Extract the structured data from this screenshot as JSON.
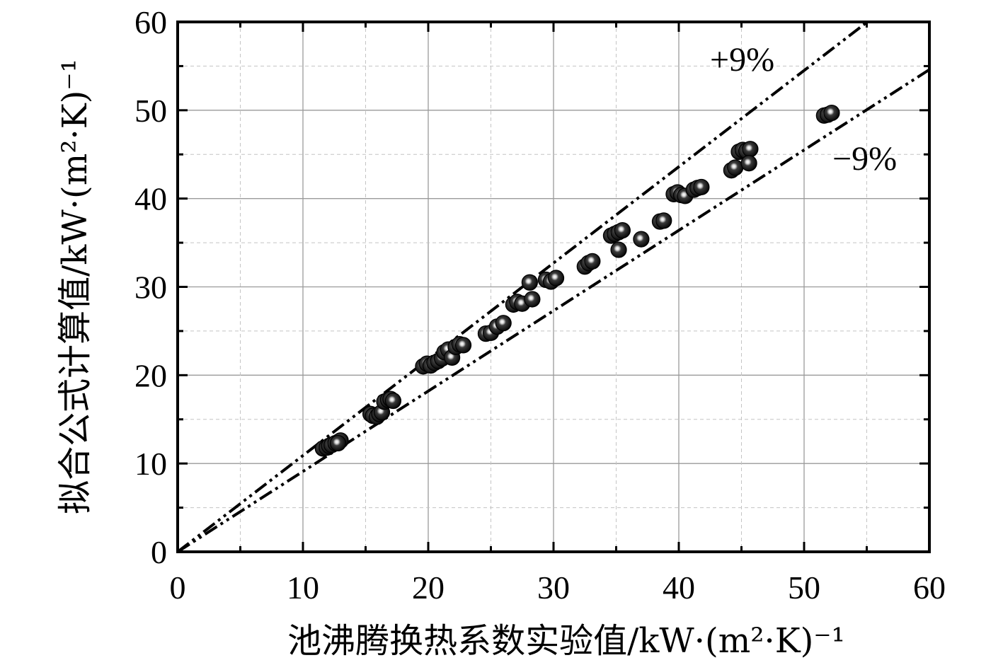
{
  "chart_data": {
    "type": "scatter",
    "xlabel": "池沸腾换热系数实验值/kW·(m²·K)⁻¹",
    "ylabel": "拟合公式计算值/kW·(m²·K)⁻¹",
    "xlim": [
      0,
      60
    ],
    "ylim": [
      0,
      60
    ],
    "xticks": [
      "0",
      "10",
      "20",
      "30",
      "40",
      "50",
      "60"
    ],
    "yticks": [
      "0",
      "10",
      "20",
      "30",
      "40",
      "50",
      "60"
    ],
    "grid": true,
    "reference_lines": [
      {
        "label": "+9%",
        "slope": 1.09,
        "style": "dash-dot"
      },
      {
        "label": "−9%",
        "slope": 0.91,
        "style": "dash-dot"
      }
    ],
    "series": [
      {
        "points": [
          [
            11.6,
            11.7
          ],
          [
            11.9,
            11.8
          ],
          [
            12.1,
            12.0
          ],
          [
            12.3,
            12.1
          ],
          [
            12.6,
            12.3
          ],
          [
            12.9,
            12.5
          ],
          [
            13.0,
            12.6
          ],
          [
            12.8,
            12.3
          ],
          [
            15.4,
            15.6
          ],
          [
            15.6,
            15.4
          ],
          [
            15.9,
            15.3
          ],
          [
            16.1,
            15.6
          ],
          [
            16.3,
            15.8
          ],
          [
            16.5,
            17.0
          ],
          [
            16.8,
            17.2
          ],
          [
            17.0,
            17.3
          ],
          [
            17.2,
            17.1
          ],
          [
            19.6,
            21.0
          ],
          [
            19.9,
            21.3
          ],
          [
            20.2,
            21.1
          ],
          [
            20.5,
            21.4
          ],
          [
            20.8,
            21.6
          ],
          [
            21.1,
            21.9
          ],
          [
            21.3,
            22.6
          ],
          [
            21.6,
            22.9
          ],
          [
            21.9,
            22.0
          ],
          [
            22.2,
            23.2
          ],
          [
            22.5,
            23.5
          ],
          [
            22.8,
            23.4
          ],
          [
            24.6,
            24.7
          ],
          [
            25.0,
            24.8
          ],
          [
            25.5,
            25.5
          ],
          [
            26.0,
            25.9
          ],
          [
            26.8,
            28.0
          ],
          [
            27.1,
            28.3
          ],
          [
            27.5,
            28.1
          ],
          [
            28.1,
            30.5
          ],
          [
            28.3,
            28.6
          ],
          [
            29.4,
            30.8
          ],
          [
            29.8,
            30.6
          ],
          [
            30.2,
            31.0
          ],
          [
            32.5,
            32.3
          ],
          [
            32.8,
            32.7
          ],
          [
            33.1,
            32.9
          ],
          [
            34.6,
            35.8
          ],
          [
            34.9,
            36.0
          ],
          [
            35.2,
            36.2
          ],
          [
            35.5,
            36.4
          ],
          [
            35.2,
            34.2
          ],
          [
            37.0,
            35.4
          ],
          [
            38.5,
            37.4
          ],
          [
            38.8,
            37.5
          ],
          [
            39.6,
            40.5
          ],
          [
            39.9,
            40.7
          ],
          [
            40.2,
            40.4
          ],
          [
            40.5,
            40.3
          ],
          [
            41.2,
            41.0
          ],
          [
            41.5,
            41.2
          ],
          [
            41.8,
            41.3
          ],
          [
            44.2,
            43.2
          ],
          [
            44.5,
            43.5
          ],
          [
            44.8,
            45.3
          ],
          [
            45.1,
            45.5
          ],
          [
            45.4,
            45.4
          ],
          [
            45.7,
            45.6
          ],
          [
            45.6,
            44.0
          ],
          [
            51.6,
            49.4
          ],
          [
            51.9,
            49.5
          ],
          [
            52.2,
            49.7
          ]
        ]
      }
    ]
  }
}
